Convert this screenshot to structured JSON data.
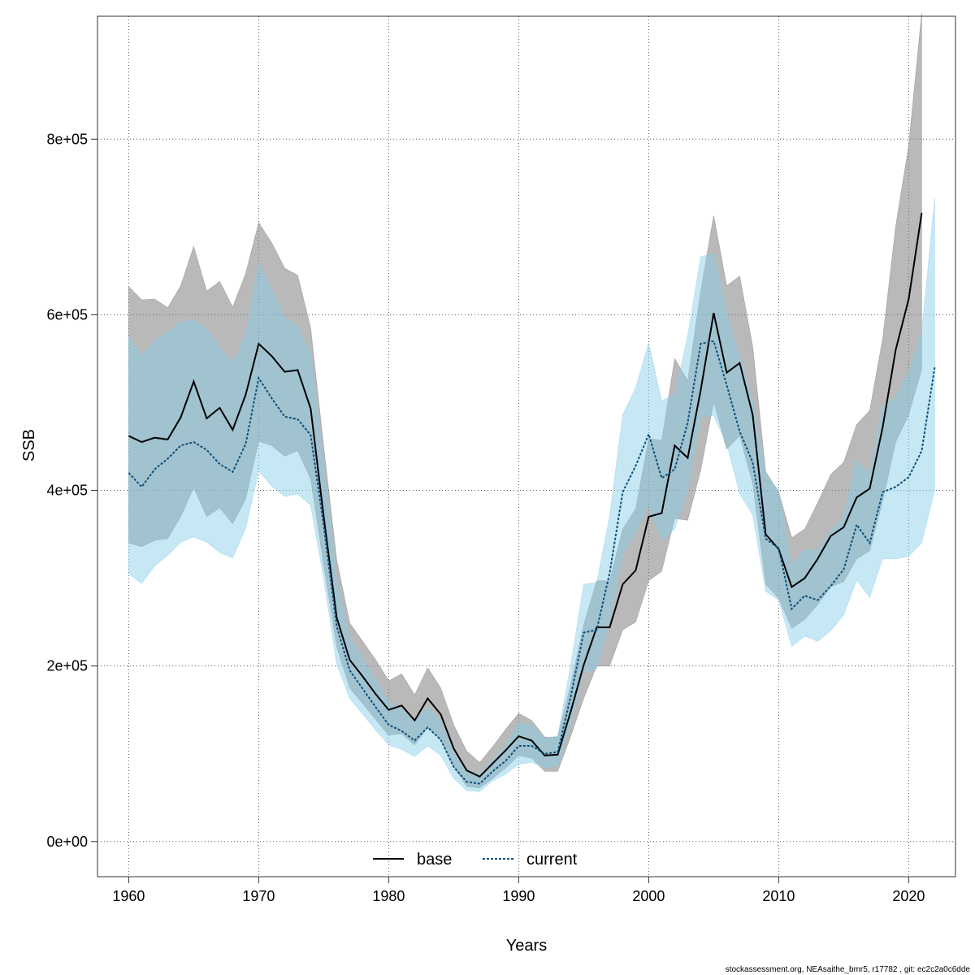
{
  "chart_data": {
    "type": "line",
    "xlabel": "Years",
    "ylabel": "SSB",
    "xlim": [
      1957.6,
      2023.6
    ],
    "ylim": [
      -40000,
      940000
    ],
    "x_ticks": [
      1960,
      1970,
      1980,
      1990,
      2000,
      2010,
      2020
    ],
    "x_tick_labels": [
      "1960",
      "1970",
      "1980",
      "1990",
      "2000",
      "2010",
      "2020"
    ],
    "y_ticks": [
      0,
      200000,
      400000,
      600000,
      800000
    ],
    "y_tick_labels": [
      "0e+00",
      "2e+05",
      "4e+05",
      "6e+05",
      "8e+05"
    ],
    "grid": true,
    "legend_position": "bottom-center",
    "series": [
      {
        "name": "base",
        "line_style": "solid",
        "line_color": "#000000",
        "band_color": "#808080",
        "x": [
          1960,
          1961,
          1962,
          1963,
          1964,
          1965,
          1966,
          1967,
          1968,
          1969,
          1970,
          1971,
          1972,
          1973,
          1974,
          1975,
          1976,
          1977,
          1978,
          1979,
          1980,
          1981,
          1982,
          1983,
          1984,
          1985,
          1986,
          1987,
          1988,
          1989,
          1990,
          1991,
          1992,
          1993,
          1994,
          1995,
          1996,
          1997,
          1998,
          1999,
          2000,
          2001,
          2002,
          2003,
          2004,
          2005,
          2006,
          2007,
          2008,
          2009,
          2010,
          2011,
          2012,
          2013,
          2014,
          2015,
          2016,
          2017,
          2018,
          2019,
          2020,
          2021
        ],
        "values": [
          462000,
          455000,
          460000,
          458000,
          483000,
          524000,
          482000,
          494000,
          469000,
          509000,
          567000,
          553000,
          535000,
          537000,
          493000,
          370000,
          255000,
          207000,
          188000,
          168000,
          150000,
          155000,
          138000,
          163000,
          145000,
          106000,
          81000,
          74000,
          89000,
          104000,
          120000,
          115000,
          98000,
          99000,
          148000,
          201000,
          244000,
          244000,
          293000,
          309000,
          370000,
          374000,
          451000,
          437000,
          514000,
          602000,
          534000,
          545000,
          486000,
          350000,
          333000,
          290000,
          300000,
          322000,
          348000,
          358000,
          392000,
          402000,
          472000,
          560000,
          618000,
          716000
        ],
        "lower": [
          340000,
          336000,
          343000,
          345000,
          370000,
          403000,
          370000,
          380000,
          362000,
          390000,
          456000,
          451000,
          439000,
          445000,
          413000,
          315000,
          222000,
          175000,
          157000,
          139000,
          121000,
          123000,
          110000,
          130000,
          116000,
          85000,
          63000,
          61000,
          72000,
          84000,
          98000,
          95000,
          80000,
          80000,
          120000,
          163000,
          200000,
          200000,
          241000,
          250000,
          297000,
          308000,
          368000,
          366000,
          423000,
          501000,
          447000,
          462000,
          408000,
          293000,
          277000,
          243000,
          253000,
          270000,
          290000,
          296000,
          322000,
          331000,
          388000,
          455000,
          486000,
          538000
        ],
        "upper": [
          632000,
          617000,
          618000,
          608000,
          633000,
          678000,
          627000,
          638000,
          609000,
          647000,
          705000,
          682000,
          653000,
          645000,
          585000,
          450000,
          321000,
          249000,
          228000,
          207000,
          183000,
          191000,
          167000,
          198000,
          175000,
          133000,
          103000,
          90000,
          108000,
          128000,
          146000,
          138000,
          119000,
          119000,
          179000,
          247000,
          297000,
          297000,
          356000,
          379000,
          459000,
          457000,
          550000,
          525000,
          627000,
          713000,
          633000,
          644000,
          564000,
          421000,
          398000,
          346000,
          356000,
          386000,
          418000,
          432000,
          475000,
          491000,
          573000,
          701000,
          793000,
          944000
        ]
      },
      {
        "name": "current",
        "line_style": "dashed",
        "line_color": "#0b4f7a",
        "band_color": "#87ceeb",
        "x": [
          1960,
          1961,
          1962,
          1963,
          1964,
          1965,
          1966,
          1967,
          1968,
          1969,
          1970,
          1971,
          1972,
          1973,
          1974,
          1975,
          1976,
          1977,
          1978,
          1979,
          1980,
          1981,
          1982,
          1983,
          1984,
          1985,
          1986,
          1987,
          1988,
          1989,
          1990,
          1991,
          1992,
          1993,
          1994,
          1995,
          1996,
          1997,
          1998,
          1999,
          2000,
          2001,
          2002,
          2003,
          2004,
          2005,
          2006,
          2007,
          2008,
          2009,
          2010,
          2011,
          2012,
          2013,
          2014,
          2015,
          2016,
          2017,
          2018,
          2019,
          2020,
          2021,
          2022
        ],
        "values": [
          420000,
          404000,
          424000,
          436000,
          451000,
          455000,
          446000,
          430000,
          421000,
          453000,
          528000,
          505000,
          484000,
          481000,
          463000,
          360000,
          245000,
          195000,
          174000,
          153000,
          133000,
          126000,
          115000,
          130000,
          116000,
          85000,
          68000,
          66000,
          80000,
          92000,
          109000,
          109000,
          100000,
          102000,
          165000,
          238000,
          241000,
          306000,
          398000,
          428000,
          464000,
          414000,
          424000,
          477000,
          567000,
          570000,
          520000,
          467000,
          432000,
          345000,
          334000,
          265000,
          280000,
          275000,
          291000,
          310000,
          361000,
          340000,
          398000,
          404000,
          415000,
          445000,
          540000
        ],
        "lower": [
          305000,
          294000,
          314000,
          326000,
          341000,
          347000,
          341000,
          329000,
          323000,
          357000,
          422000,
          405000,
          393000,
          396000,
          383000,
          299000,
          202000,
          163000,
          145000,
          127000,
          110000,
          105000,
          97000,
          109000,
          98000,
          72000,
          58000,
          57000,
          69000,
          77000,
          88000,
          90000,
          84000,
          86000,
          135000,
          193000,
          197000,
          252000,
          326000,
          353000,
          383000,
          343000,
          356000,
          400000,
          484000,
          485000,
          453000,
          396000,
          372000,
          285000,
          275000,
          222000,
          234000,
          228000,
          240000,
          258000,
          298000,
          278000,
          322000,
          322000,
          325000,
          340000,
          400000
        ],
        "upper": [
          576000,
          553000,
          571000,
          580000,
          592000,
          594000,
          584000,
          562000,
          545000,
          577000,
          659000,
          629000,
          597000,
          586000,
          555000,
          432000,
          296000,
          232000,
          208000,
          184000,
          159000,
          150000,
          137000,
          154000,
          138000,
          101000,
          80000,
          77000,
          93000,
          110000,
          135000,
          133000,
          118000,
          120000,
          201000,
          293000,
          295000,
          371000,
          486000,
          517000,
          568000,
          502000,
          509000,
          576000,
          666000,
          670000,
          603000,
          552000,
          502000,
          418000,
          400000,
          315000,
          333000,
          331000,
          353000,
          370000,
          434000,
          418000,
          496000,
          506000,
          535000,
          581000,
          733000
        ]
      }
    ]
  },
  "footer": "stockassessment.org, NEAsaithe_bmr5, r17782 , git: ec2c2a0c6dde"
}
